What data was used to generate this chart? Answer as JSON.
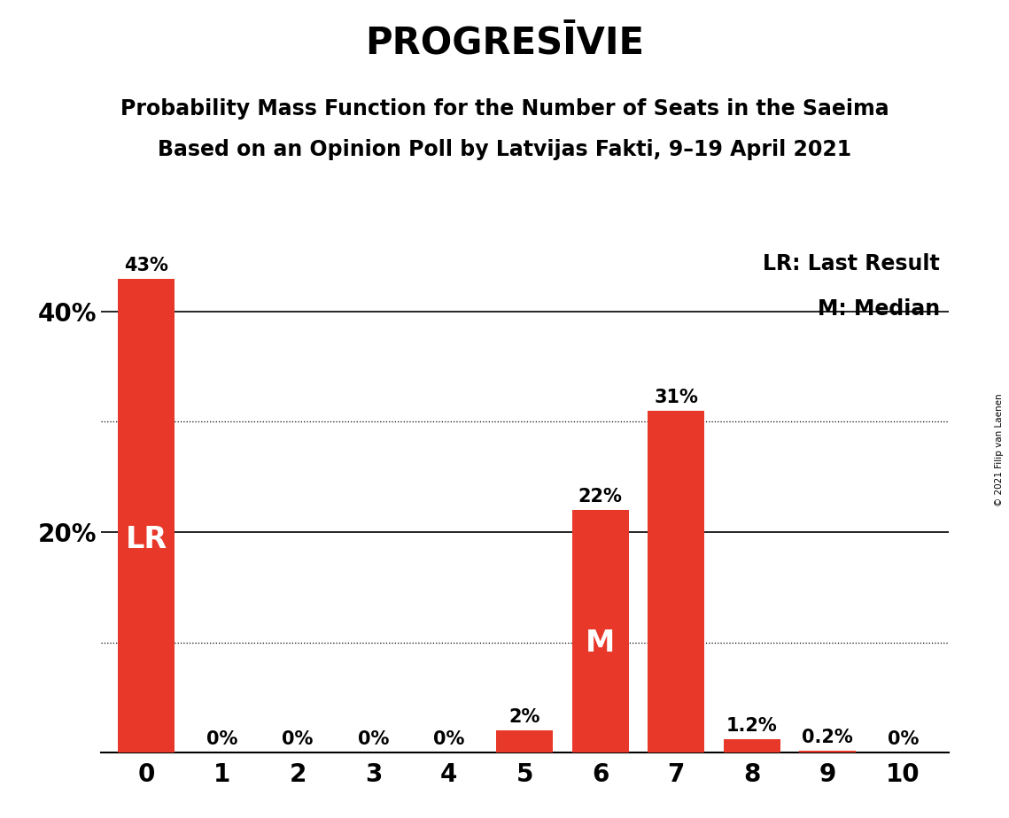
{
  "title": "PROGRESĪVIE",
  "subtitle1": "Probability Mass Function for the Number of Seats in the Saeima",
  "subtitle2": "Based on an Opinion Poll by Latvijas Fakti, 9–19 April 2021",
  "copyright": "© 2021 Filip van Laenen",
  "categories": [
    0,
    1,
    2,
    3,
    4,
    5,
    6,
    7,
    8,
    9,
    10
  ],
  "values": [
    43,
    0,
    0,
    0,
    0,
    2,
    22,
    31,
    1.2,
    0.2,
    0
  ],
  "bar_color": "#E8382A",
  "background_color": "#FFFFFF",
  "ylim": [
    0,
    46
  ],
  "yticks": [
    20,
    40
  ],
  "ytick_labels": [
    "20%",
    "40%"
  ],
  "bar_labels": [
    "43%",
    "0%",
    "0%",
    "0%",
    "0%",
    "2%",
    "22%",
    "31%",
    "1.2%",
    "0.2%",
    "0%"
  ],
  "lr_bar": 0,
  "median_bar": 6,
  "legend_lr": "LR: Last Result",
  "legend_m": "M: Median",
  "solid_lines": [
    20,
    40
  ],
  "dotted_lines": [
    10,
    30
  ],
  "title_fontsize": 30,
  "subtitle_fontsize": 17,
  "axis_tick_fontsize": 20,
  "bar_label_fontsize": 15,
  "inbar_label_fontsize": 24,
  "legend_fontsize": 17
}
